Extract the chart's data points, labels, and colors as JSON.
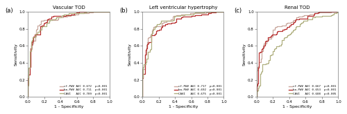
{
  "panels": [
    {
      "title": "Vascular TOD",
      "label": "(a)",
      "legend": [
        {
          "name": "cf-PWV",
          "auc": "AUC 0.672",
          "p": "p<0.001",
          "color": "#c9a89e"
        },
        {
          "name": "ba-PWV",
          "auc": "AUC 0.711",
          "p": "p<0.001",
          "color": "#b83030"
        },
        {
          "name": "CAVI",
          "auc": "AUC 0.709",
          "p": "p<0.001",
          "color": "#b0b080"
        }
      ],
      "seeds": [
        1,
        2,
        3
      ]
    },
    {
      "title": "Left ventricular hypertrophy",
      "label": "(b)",
      "legend": [
        {
          "name": "cf-PWV",
          "auc": "AUC 0.717",
          "p": "p<0.001",
          "color": "#c9a89e"
        },
        {
          "name": "ba-PWV",
          "auc": "AUC 0.692",
          "p": "p<0.001",
          "color": "#b83030"
        },
        {
          "name": "CAVI",
          "auc": "AUC 0.675",
          "p": "p<0.001",
          "color": "#b0b080"
        }
      ],
      "seeds": [
        4,
        5,
        6
      ]
    },
    {
      "title": "Renal TOD",
      "label": "(c)",
      "legend": [
        {
          "name": "cf-PWV",
          "auc": "AUC 0.667",
          "p": "p<0.001",
          "color": "#c9a89e"
        },
        {
          "name": "ba-PWV",
          "auc": "AUC 0.653",
          "p": "p<0.001",
          "color": "#b83030"
        },
        {
          "name": "CAVI",
          "auc": "AUC 0.608",
          "p": "p<0.005",
          "color": "#b0b080"
        }
      ],
      "seeds": [
        7,
        8,
        9
      ]
    }
  ],
  "xlabel": "1 - Specificity",
  "ylabel": "Sensitivity",
  "xlim": [
    0.0,
    1.0
  ],
  "ylim": [
    0.0,
    1.0
  ],
  "xticks": [
    0.0,
    0.2,
    0.4,
    0.6,
    0.8,
    1.0
  ],
  "yticks": [
    0.0,
    0.2,
    0.4,
    0.6,
    0.8,
    1.0
  ],
  "background_color": "#ffffff",
  "line_width": 0.9
}
